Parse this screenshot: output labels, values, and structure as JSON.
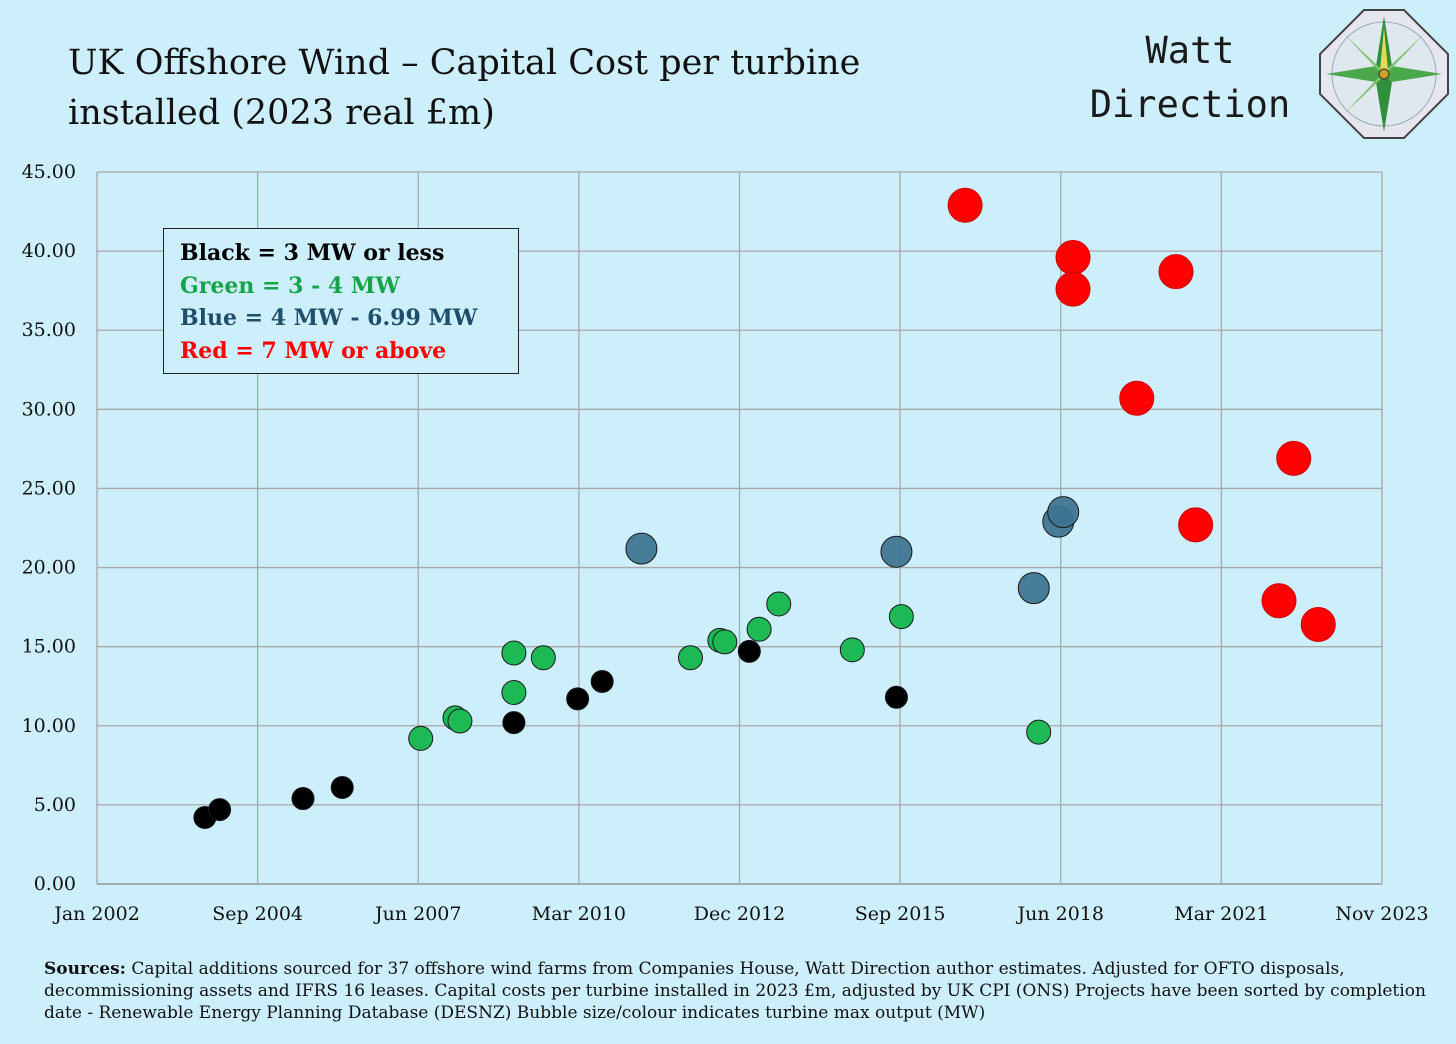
{
  "title_lines": [
    "UK Offshore Wind – Capital Cost per turbine",
    "installed  (2023 real £m)"
  ],
  "brand": {
    "line1": "Watt",
    "line2": "Direction"
  },
  "legend": [
    {
      "label": "Black = 3 MW or less",
      "color": "#000000"
    },
    {
      "label": "Green = 3 - 4 MW",
      "color": "#16a34a"
    },
    {
      "label": "Blue = 4 MW -  6.99 MW",
      "color": "#1f4e6b"
    },
    {
      "label": "Red =  7 MW or above",
      "color": "#ff0000"
    }
  ],
  "sources": {
    "label": "Sources:",
    "text": "Capital additions sourced for 37 offshore wind farms from Companies House, Watt Direction author estimates. Adjusted for OFTO disposals, decommissioning assets and IFRS 16 leases. Capital costs per turbine installed in 2023 £m, adjusted by  UK CPI (ONS) Projects have been sorted by completion date - Renewable Energy Planning Database (DESNZ) Bubble size/colour indicates turbine max output (MW)"
  },
  "chart_data": {
    "type": "scatter",
    "title": "UK Offshore Wind – Capital Cost per turbine installed  (2023 real £m)",
    "xlabel": "",
    "ylabel": "",
    "xlim": [
      "2002-01",
      "2023-11"
    ],
    "ylim": [
      0,
      45
    ],
    "x_ticks": [
      "Jan 2002",
      "Sep 2004",
      "Jun 2007",
      "Mar 2010",
      "Dec 2012",
      "Sep 2015",
      "Jun 2018",
      "Mar 2021",
      "Nov 2023"
    ],
    "y_ticks": [
      "0.00",
      "5.00",
      "10.00",
      "15.00",
      "20.00",
      "25.00",
      "30.00",
      "35.00",
      "40.00",
      "45.00"
    ],
    "grid": true,
    "bubble_size": "turbine max output (MW)",
    "colors": {
      "black": "#000000",
      "green": "#1db954",
      "blue": "#3d7390",
      "red": "#ff0000"
    },
    "series": [
      {
        "name": "Black = 3 MW or less",
        "color": "black",
        "size": 1,
        "points": [
          {
            "x": "2003-11",
            "y": 4.2
          },
          {
            "x": "2004-02",
            "y": 4.7
          },
          {
            "x": "2005-07",
            "y": 5.4
          },
          {
            "x": "2006-03",
            "y": 6.1
          },
          {
            "x": "2009-02",
            "y": 10.2
          },
          {
            "x": "2010-03",
            "y": 11.7
          },
          {
            "x": "2010-08",
            "y": 12.8
          },
          {
            "x": "2013-02",
            "y": 14.7
          },
          {
            "x": "2015-08",
            "y": 11.8
          }
        ]
      },
      {
        "name": "Green = 3 - 4 MW",
        "color": "green",
        "size": 2,
        "points": [
          {
            "x": "2007-07",
            "y": 9.2
          },
          {
            "x": "2008-02",
            "y": 10.5
          },
          {
            "x": "2008-03",
            "y": 10.3
          },
          {
            "x": "2009-02",
            "y": 14.6
          },
          {
            "x": "2009-02",
            "y": 12.1
          },
          {
            "x": "2009-08",
            "y": 14.3
          },
          {
            "x": "2012-02",
            "y": 14.3
          },
          {
            "x": "2012-08",
            "y": 15.4
          },
          {
            "x": "2012-09",
            "y": 15.3
          },
          {
            "x": "2013-04",
            "y": 16.1
          },
          {
            "x": "2013-08",
            "y": 17.7
          },
          {
            "x": "2014-11",
            "y": 14.8
          },
          {
            "x": "2015-09",
            "y": 16.9
          },
          {
            "x": "2018-01",
            "y": 9.6
          }
        ]
      },
      {
        "name": "Blue = 4 MW -  6.99 MW",
        "color": "blue",
        "size": 3,
        "points": [
          {
            "x": "2011-04",
            "y": 21.2
          },
          {
            "x": "2015-08",
            "y": 21.0
          },
          {
            "x": "2017-12",
            "y": 18.7
          },
          {
            "x": "2018-05",
            "y": 22.9
          },
          {
            "x": "2018-06",
            "y": 23.5
          }
        ]
      },
      {
        "name": "Red =  7 MW or above",
        "color": "red",
        "size": 4,
        "points": [
          {
            "x": "2016-10",
            "y": 42.9
          },
          {
            "x": "2018-08",
            "y": 39.6
          },
          {
            "x": "2018-08",
            "y": 37.6
          },
          {
            "x": "2020-05",
            "y": 38.7
          },
          {
            "x": "2019-09",
            "y": 30.7
          },
          {
            "x": "2020-09",
            "y": 22.7
          },
          {
            "x": "2022-05",
            "y": 26.9
          },
          {
            "x": "2022-02",
            "y": 17.9
          },
          {
            "x": "2022-10",
            "y": 16.4
          }
        ]
      }
    ]
  }
}
